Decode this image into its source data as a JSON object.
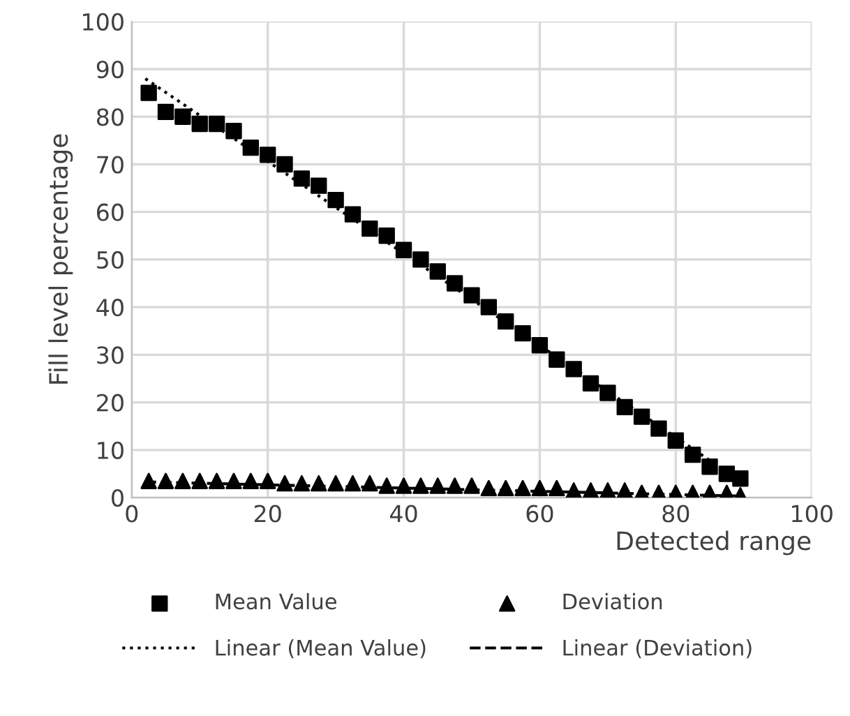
{
  "chart_data": {
    "type": "scatter",
    "xlabel": "Detected range",
    "ylabel": "Fill level percentage",
    "xlim": [
      0,
      100
    ],
    "xticks": [
      0,
      20,
      40,
      60,
      80,
      100
    ],
    "ylim": [
      0,
      100
    ],
    "yticks": [
      0,
      10,
      20,
      30,
      40,
      50,
      60,
      70,
      80,
      90,
      100
    ],
    "grid": true,
    "legend": "bottom",
    "series": [
      {
        "name": "Mean Value",
        "marker": "square",
        "color": "#000000",
        "x": [
          2.5,
          5,
          7.5,
          10,
          12.5,
          15,
          17.5,
          20,
          22.5,
          25,
          27.5,
          30,
          32.5,
          35,
          37.5,
          40,
          42.5,
          45,
          47.5,
          50,
          52.5,
          55,
          57.5,
          60,
          62.5,
          65,
          67.5,
          70,
          72.5,
          75,
          77.5,
          80,
          82.5,
          85,
          87.5,
          89.5
        ],
        "values": [
          85,
          81,
          80,
          78.5,
          78.5,
          77,
          73.5,
          72,
          70,
          67,
          65.5,
          62.5,
          59.5,
          56.5,
          55,
          52,
          50,
          47.5,
          45,
          42.5,
          40,
          37,
          34.5,
          32,
          29,
          27,
          24,
          22,
          19,
          17,
          14.5,
          12,
          9,
          6.5,
          5,
          4
        ]
      },
      {
        "name": "Deviation",
        "marker": "triangle",
        "color": "#000000",
        "x": [
          2.5,
          5,
          7.5,
          10,
          12.5,
          15,
          17.5,
          20,
          22.5,
          25,
          27.5,
          30,
          32.5,
          35,
          37.5,
          40,
          42.5,
          45,
          47.5,
          50,
          52.5,
          55,
          57.5,
          60,
          62.5,
          65,
          67.5,
          70,
          72.5,
          75,
          77.5,
          80,
          82.5,
          85,
          87.5,
          89.5
        ],
        "values": [
          3.5,
          3.5,
          3.5,
          3.5,
          3.5,
          3.5,
          3.5,
          3.5,
          3,
          3,
          3,
          3,
          3,
          3,
          2.5,
          2.5,
          2.5,
          2.5,
          2.5,
          2.5,
          2,
          2,
          2,
          2,
          2,
          1.5,
          1.5,
          1.5,
          1.5,
          1,
          1,
          1,
          1,
          1,
          1,
          0.5
        ]
      },
      {
        "name": "Linear (Mean Value)",
        "type": "line",
        "line_style": "dotted",
        "color": "#000000",
        "x": [
          2,
          90
        ],
        "values": [
          88,
          3
        ]
      },
      {
        "name": "Linear (Deviation)",
        "type": "line",
        "line_style": "dashed",
        "color": "#000000",
        "x": [
          2,
          90
        ],
        "values": [
          3.3,
          0.3
        ]
      }
    ]
  }
}
